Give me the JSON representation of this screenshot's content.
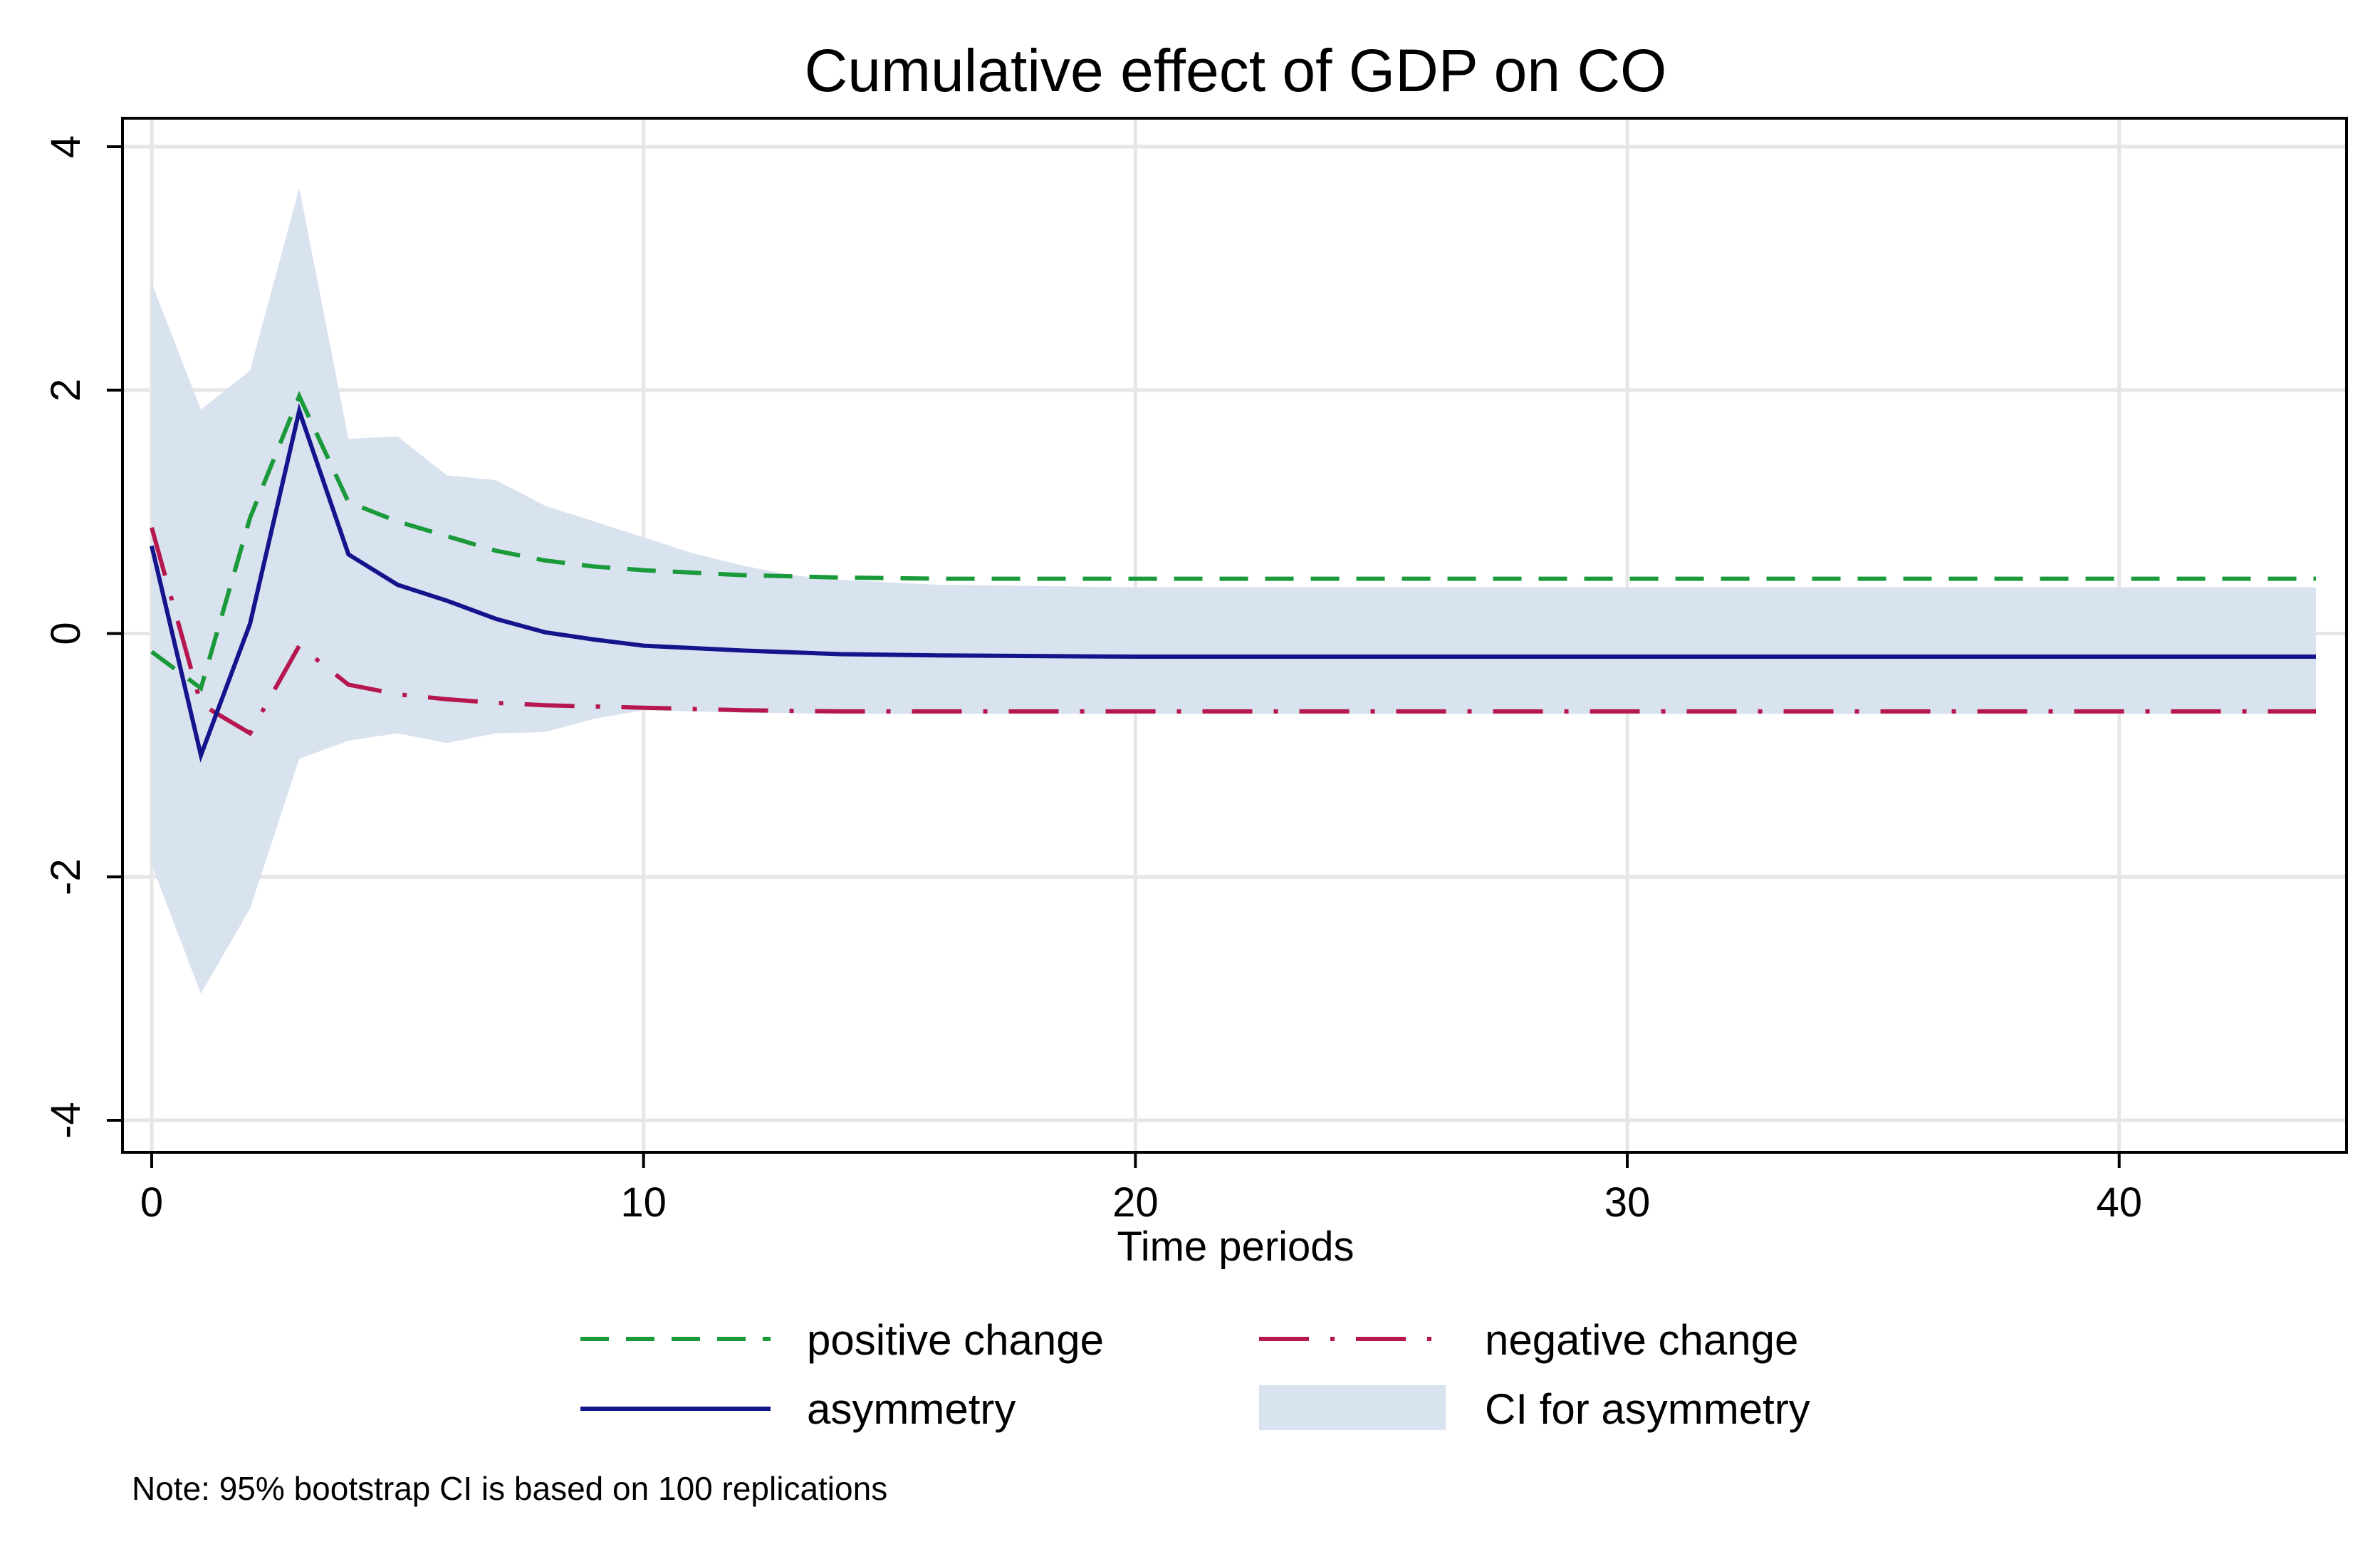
{
  "chart_data": {
    "type": "line",
    "title": "Cumulative effect of GDP on CO",
    "xlabel": "Time periods",
    "ylabel": "",
    "xlim": [
      0,
      44
    ],
    "ylim": [
      -4,
      4
    ],
    "grid": true,
    "legend_position": "bottom",
    "x_ticks": [
      0,
      10,
      20,
      30,
      40
    ],
    "x_tick_labels": [
      "0",
      "10",
      "20",
      "30",
      "40"
    ],
    "y_ticks": [
      -4,
      -2,
      0,
      2,
      4
    ],
    "y_tick_labels": [
      "-4",
      "-2",
      "0",
      "2",
      "4"
    ],
    "note": "Note: 95% bootstrap CI is based on 100 replications",
    "series": [
      {
        "name": "positive change",
        "style": "dash",
        "color": "#1a9a3a",
        "points": [
          [
            0,
            -0.15
          ],
          [
            1,
            -0.45
          ],
          [
            2,
            0.95
          ],
          [
            3,
            1.95
          ],
          [
            4,
            1.08
          ],
          [
            5,
            0.92
          ],
          [
            6,
            0.8
          ],
          [
            7,
            0.68
          ],
          [
            8,
            0.6
          ],
          [
            9,
            0.55
          ],
          [
            10,
            0.52
          ],
          [
            12,
            0.48
          ],
          [
            14,
            0.46
          ],
          [
            16,
            0.45
          ],
          [
            20,
            0.45
          ],
          [
            44,
            0.45
          ]
        ]
      },
      {
        "name": "negative change",
        "style": "longdash-dot",
        "color": "#b5174e",
        "points": [
          [
            0,
            0.87
          ],
          [
            1,
            -0.58
          ],
          [
            2,
            -0.82
          ],
          [
            3,
            -0.1
          ],
          [
            4,
            -0.42
          ],
          [
            5,
            -0.5
          ],
          [
            6,
            -0.54
          ],
          [
            7,
            -0.57
          ],
          [
            8,
            -0.59
          ],
          [
            9,
            -0.6
          ],
          [
            10,
            -0.61
          ],
          [
            12,
            -0.63
          ],
          [
            14,
            -0.64
          ],
          [
            20,
            -0.64
          ],
          [
            44,
            -0.64
          ]
        ]
      },
      {
        "name": "asymmetry",
        "style": "solid",
        "color": "#14148c",
        "points": [
          [
            0,
            0.72
          ],
          [
            1,
            -1.0
          ],
          [
            2,
            0.08
          ],
          [
            3,
            1.83
          ],
          [
            4,
            0.65
          ],
          [
            5,
            0.4
          ],
          [
            6,
            0.27
          ],
          [
            7,
            0.12
          ],
          [
            8,
            0.01
          ],
          [
            9,
            -0.05
          ],
          [
            10,
            -0.1
          ],
          [
            12,
            -0.14
          ],
          [
            14,
            -0.17
          ],
          [
            16,
            -0.18
          ],
          [
            20,
            -0.19
          ],
          [
            44,
            -0.19
          ]
        ]
      }
    ],
    "ci": {
      "name": "CI for asymmetry",
      "color": "#d9e2ef",
      "upper": [
        [
          0,
          2.88
        ],
        [
          1,
          1.84
        ],
        [
          2,
          2.16
        ],
        [
          3,
          3.66
        ],
        [
          4,
          1.6
        ],
        [
          5,
          1.62
        ],
        [
          6,
          1.3
        ],
        [
          7,
          1.26
        ],
        [
          8,
          1.05
        ],
        [
          9,
          0.92
        ],
        [
          10,
          0.79
        ],
        [
          11,
          0.66
        ],
        [
          12,
          0.56
        ],
        [
          13,
          0.48
        ],
        [
          14,
          0.44
        ],
        [
          16,
          0.4
        ],
        [
          20,
          0.38
        ],
        [
          44,
          0.38
        ]
      ],
      "lower": [
        [
          0,
          -1.9
        ],
        [
          1,
          -2.96
        ],
        [
          2,
          -2.26
        ],
        [
          3,
          -1.03
        ],
        [
          4,
          -0.88
        ],
        [
          5,
          -0.82
        ],
        [
          6,
          -0.9
        ],
        [
          7,
          -0.82
        ],
        [
          8,
          -0.81
        ],
        [
          9,
          -0.7
        ],
        [
          10,
          -0.63
        ],
        [
          12,
          -0.65
        ],
        [
          14,
          -0.66
        ],
        [
          20,
          -0.66
        ],
        [
          44,
          -0.66
        ]
      ]
    }
  }
}
